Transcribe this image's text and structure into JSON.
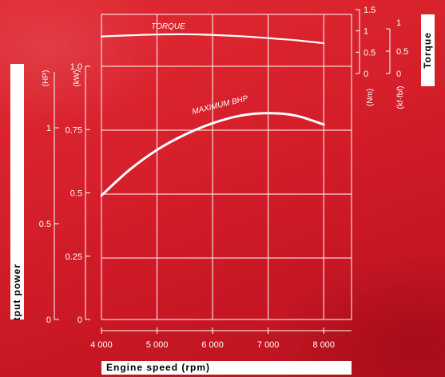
{
  "chart_data": {
    "type": "line",
    "xlabel": "Engine speed (rpm)",
    "x_ticks": [
      4000,
      5000,
      6000,
      7000,
      8000
    ],
    "x_tick_labels": [
      "4 000",
      "5 000",
      "6 000",
      "7 000",
      "8 000"
    ],
    "xlim": [
      4000,
      8500
    ],
    "power_axis_title": "Output power",
    "torque_axis_title": "Torque",
    "axes": {
      "hp": {
        "unit": "(HP)",
        "ticks": [
          0,
          0.5,
          1
        ],
        "tick_labels": [
          "0",
          "0.5",
          "1"
        ],
        "range": [
          0,
          1.0
        ]
      },
      "kw": {
        "unit": "(kW)",
        "ticks": [
          0,
          0.25,
          0.5,
          0.75,
          1.0
        ],
        "tick_labels": [
          "0",
          "0.25",
          "0.5",
          "0.75",
          "1.0"
        ],
        "range": [
          0,
          1.0
        ]
      },
      "nm": {
        "unit": "(Nm)",
        "ticks": [
          0,
          0.5,
          1,
          1.5
        ],
        "tick_labels": [
          "0",
          "0.5",
          "1",
          "1.5"
        ]
      },
      "kgfm": {
        "unit": "(kf·fbf)",
        "ticks": [
          0,
          0.5,
          1
        ],
        "tick_labels": [
          "0",
          "0.5",
          "1"
        ]
      }
    },
    "series": [
      {
        "name": "MAXIMUM BHP",
        "unit": "kW",
        "x": [
          4000,
          4500,
          5000,
          5500,
          6000,
          6500,
          7000,
          7500,
          8000
        ],
        "values": [
          0.49,
          0.59,
          0.67,
          0.73,
          0.775,
          0.805,
          0.815,
          0.805,
          0.77
        ]
      },
      {
        "name": "TORQUE",
        "unit": "Nm",
        "x": [
          4000,
          4500,
          5000,
          5500,
          6000,
          6500,
          7000,
          7500,
          8000
        ],
        "values": [
          0.87,
          0.895,
          0.915,
          0.92,
          0.905,
          0.875,
          0.83,
          0.78,
          0.71
        ]
      }
    ],
    "grid": true
  },
  "colors": {
    "background": "#d8222c",
    "ink": "#ffffff",
    "label_box": "#ffffff",
    "label_text": "#000000"
  }
}
